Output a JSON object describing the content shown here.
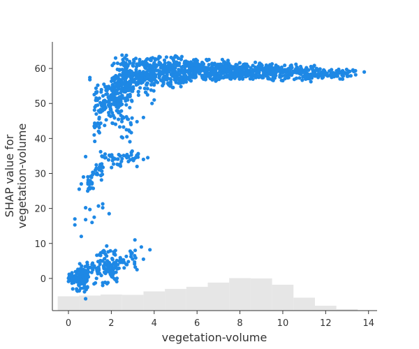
{
  "chart_data": {
    "type": "scatter",
    "title": "",
    "xlabel": "vegetation-volume",
    "ylabel": [
      "SHAP value for",
      "vegetation-volume"
    ],
    "xlim": [
      -0.75,
      14.4
    ],
    "ylim": [
      -9.2,
      67.6
    ],
    "x_ticks": [
      0,
      2,
      4,
      6,
      8,
      10,
      12,
      14
    ],
    "y_ticks": [
      0,
      10,
      20,
      30,
      40,
      50,
      60
    ],
    "grid": false,
    "point_color": "#1e88e5",
    "histogram_color": "#e6e6e6",
    "background_histogram": {
      "bin_edges": [
        -0.5,
        0.5,
        1.5,
        2.5,
        3.5,
        4.5,
        5.5,
        6.5,
        7.5,
        8.5,
        9.5,
        10.5,
        11.5,
        12.5,
        13.5
      ],
      "tops": [
        -5.1,
        -4.9,
        -4.6,
        -4.7,
        -3.7,
        -3.0,
        -2.4,
        -1.2,
        0.1,
        0.0,
        -1.8,
        -5.5,
        -7.8,
        -8.8
      ]
    },
    "clusters": [
      {
        "x": [
          0.0,
          0.2
        ],
        "y": [
          -2.0,
          2.0
        ],
        "n": 40
      },
      {
        "x": [
          0.25,
          0.9
        ],
        "y": [
          -4.5,
          4.0
        ],
        "n": 70
      },
      {
        "x": [
          0.5,
          1.4
        ],
        "y": [
          -3.0,
          7.0
        ],
        "n": 45
      },
      {
        "x": [
          1.4,
          2.2
        ],
        "y": [
          -1.0,
          9.5
        ],
        "n": 65
      },
      {
        "x": [
          2.2,
          3.2
        ],
        "y": [
          2.0,
          9.0
        ],
        "n": 30
      },
      {
        "x": [
          1.6,
          2.5
        ],
        "y": [
          -1.5,
          5.0
        ],
        "n": 25
      },
      {
        "x": [
          0.9,
          1.2
        ],
        "y": [
          24.5,
          31.0
        ],
        "n": 22
      },
      {
        "x": [
          1.2,
          1.6
        ],
        "y": [
          28.0,
          33.0
        ],
        "n": 16
      },
      {
        "x": [
          1.5,
          2.5
        ],
        "y": [
          31.0,
          37.0
        ],
        "n": 30
      },
      {
        "x": [
          2.5,
          3.3
        ],
        "y": [
          33.0,
          37.0
        ],
        "n": 18
      },
      {
        "x": [
          1.2,
          1.5
        ],
        "y": [
          38.0,
          57.0
        ],
        "n": 30
      },
      {
        "x": [
          1.5,
          2.5
        ],
        "y": [
          43.0,
          57.0
        ],
        "n": 100
      },
      {
        "x": [
          2.0,
          3.0
        ],
        "y": [
          48.0,
          63.0
        ],
        "n": 120
      },
      {
        "x": [
          2.5,
          4.0
        ],
        "y": [
          52.0,
          64.0
        ],
        "n": 200
      },
      {
        "x": [
          2.3,
          3.0
        ],
        "y": [
          38.0,
          48.0
        ],
        "n": 20
      },
      {
        "x": [
          3.8,
          5.5
        ],
        "y": [
          54.0,
          64.0
        ],
        "n": 220
      },
      {
        "x": [
          5.5,
          7.5
        ],
        "y": [
          56.0,
          63.0
        ],
        "n": 240
      },
      {
        "x": [
          7.5,
          9.5
        ],
        "y": [
          56.5,
          62.0
        ],
        "n": 200
      },
      {
        "x": [
          9.5,
          11.5
        ],
        "y": [
          56.0,
          61.5
        ],
        "n": 140
      },
      {
        "x": [
          11.5,
          13.0
        ],
        "y": [
          56.5,
          60.5
        ],
        "n": 70
      },
      {
        "x": [
          13.0,
          13.4
        ],
        "y": [
          57.5,
          60.0
        ],
        "n": 10
      }
    ],
    "outlier_points": [
      [
        0.3,
        17.0
      ],
      [
        0.3,
        15.3
      ],
      [
        0.6,
        12.0
      ],
      [
        0.8,
        20.2
      ],
      [
        1.0,
        19.7
      ],
      [
        1.2,
        17.5
      ],
      [
        1.1,
        16.0
      ],
      [
        1.4,
        20.7
      ],
      [
        1.6,
        21.3
      ],
      [
        1.6,
        20.2
      ],
      [
        1.9,
        18.5
      ],
      [
        0.8,
        16.8
      ],
      [
        0.5,
        25.5
      ],
      [
        0.6,
        27.0
      ],
      [
        0.7,
        29.0
      ],
      [
        0.8,
        34.8
      ],
      [
        1.5,
        36.2
      ],
      [
        3.2,
        32.0
      ],
      [
        3.5,
        34.0
      ],
      [
        3.7,
        34.5
      ],
      [
        3.0,
        34.2
      ],
      [
        3.2,
        44.8
      ],
      [
        3.5,
        46.0
      ],
      [
        3.9,
        50.0
      ],
      [
        3.8,
        8.2
      ],
      [
        3.4,
        9.0
      ],
      [
        3.1,
        11.0
      ],
      [
        3.2,
        2.5
      ],
      [
        3.5,
        5.5
      ],
      [
        2.6,
        3.0
      ],
      [
        0.8,
        -5.8
      ],
      [
        1.6,
        -2.0
      ],
      [
        1.8,
        -1.5
      ],
      [
        4.0,
        51.0
      ],
      [
        13.8,
        59.0
      ],
      [
        13.4,
        58.2
      ],
      [
        1.0,
        56.8
      ],
      [
        1.0,
        57.4
      ],
      [
        1.3,
        53.0
      ],
      [
        1.3,
        47.0
      ],
      [
        1.2,
        43.5
      ],
      [
        1.2,
        41.0
      ],
      [
        2.5,
        63.8
      ],
      [
        2.2,
        63.0
      ],
      [
        0.2,
        -3.0
      ],
      [
        1.0,
        27.0
      ],
      [
        0.9,
        25.0
      ],
      [
        1.3,
        31.5
      ]
    ]
  }
}
